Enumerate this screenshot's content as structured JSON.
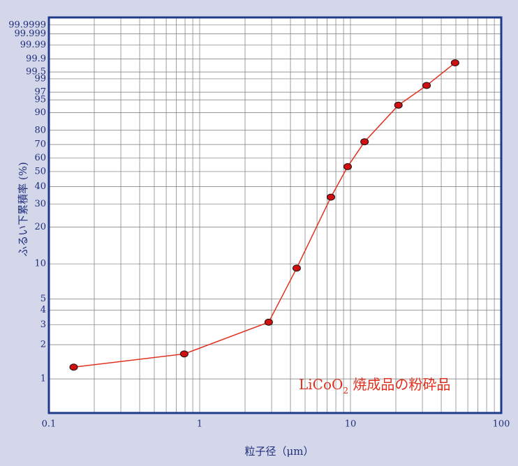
{
  "chart_data": {
    "type": "line",
    "y_scale": "weibull-probability",
    "x_scale": "log",
    "x_label": "粒子径（μm）",
    "y_label": "ふるい下累積率 (%)",
    "annotation": {
      "text": "LiCoO",
      "subscript": "2",
      "suffix": " 焼成品の粉砕品"
    },
    "annotation_color": "#e0301e",
    "series": [
      {
        "name": "LiCoO2",
        "color": "#e0301e",
        "marker_color": "#d01010",
        "x": [
          0.146,
          0.79,
          2.87,
          4.4,
          7.42,
          9.58,
          12.4,
          20.8,
          32.0,
          49.4
        ],
        "values": [
          1.27,
          1.66,
          3.15,
          9.2,
          33.7,
          53.5,
          72.0,
          93.2,
          98.2,
          99.83
        ]
      }
    ],
    "xlim": [
      0.1,
      100
    ],
    "xticks": [
      0.1,
      1,
      10,
      100
    ],
    "ylim": [
      0.5,
      99.99999
    ],
    "yticks": [
      1,
      2,
      3,
      4,
      5,
      10,
      20,
      30,
      40,
      50,
      60,
      70,
      80,
      90,
      95,
      97,
      99,
      99.5,
      99.9,
      99.99,
      99.999,
      99.9999
    ],
    "grid": true
  }
}
